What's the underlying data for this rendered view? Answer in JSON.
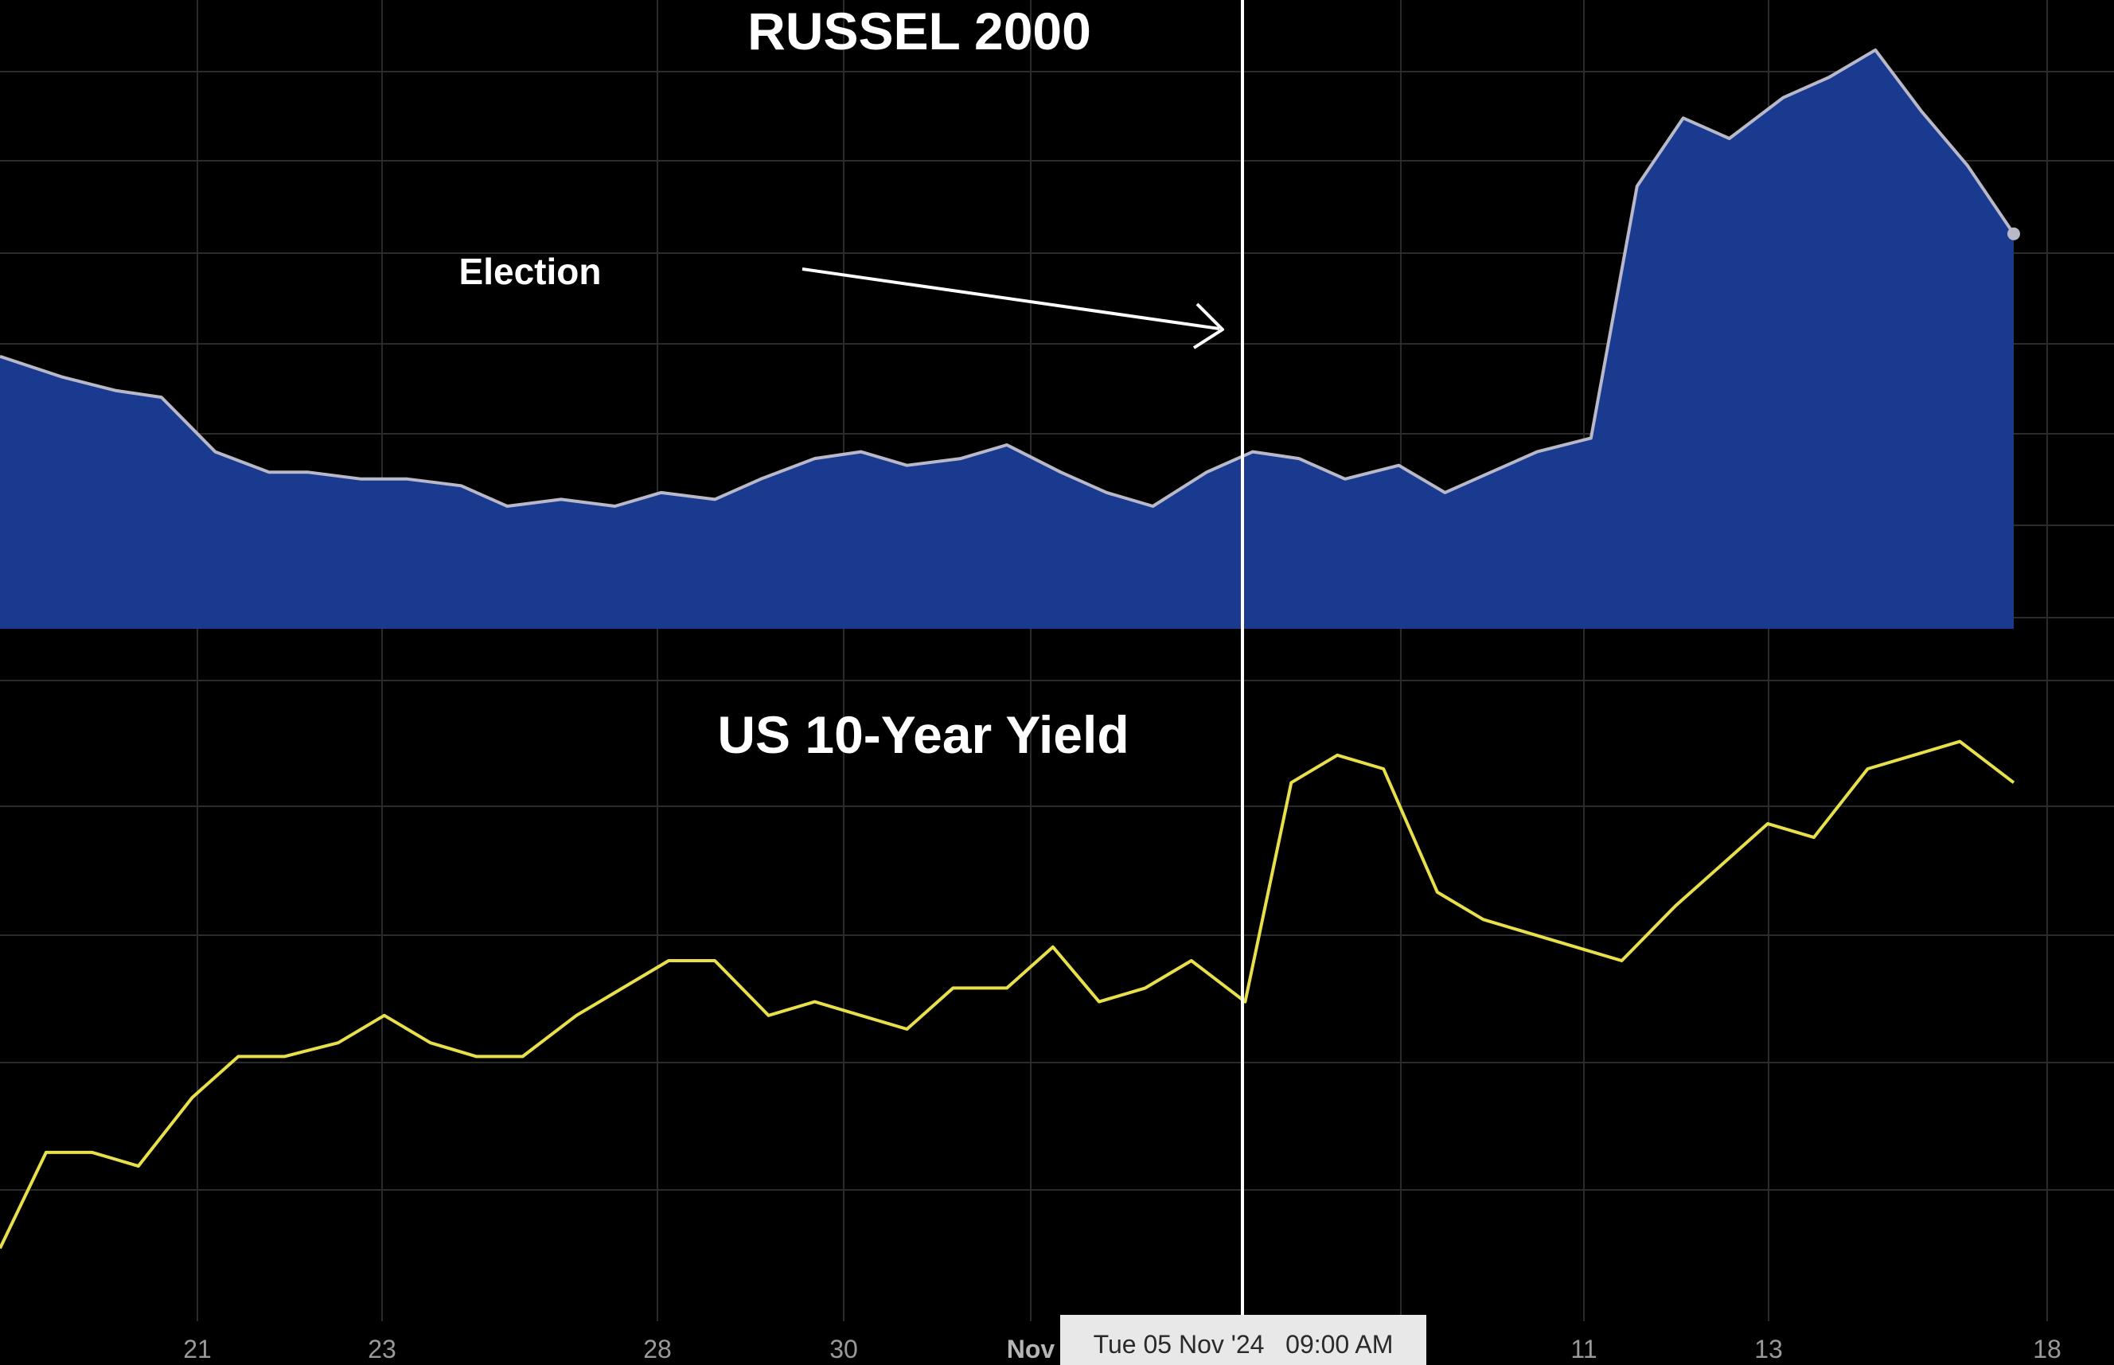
{
  "chart_data": [
    {
      "type": "area",
      "title": "RUSSEL 2000",
      "color": "#1a3a8f",
      "line_color": "#b8b8c8",
      "annotation": "Election",
      "x_ticks": [
        "21",
        "23",
        "28",
        "30",
        "Nov",
        "11",
        "13",
        "18"
      ],
      "grid": true,
      "x": [
        0,
        8,
        15,
        21,
        28,
        35,
        40,
        47,
        53,
        60,
        66,
        73,
        80,
        86,
        93,
        99,
        106,
        112,
        118,
        125,
        131,
        138,
        144,
        150,
        157,
        163,
        169,
        175,
        182,
        188,
        194,
        200,
        207,
        213,
        219,
        225,
        232,
        238,
        244,
        250,
        256,
        262
      ],
      "values": [
        100,
        97,
        95,
        94,
        86,
        83,
        83,
        82,
        82,
        81,
        78,
        79,
        78,
        80,
        79,
        82,
        85,
        86,
        84,
        85,
        87,
        83,
        80,
        78,
        83,
        86,
        85,
        82,
        84,
        80,
        83,
        86,
        88,
        125,
        135,
        132,
        138,
        141,
        145,
        136,
        128,
        118
      ],
      "ylim": [
        60,
        150
      ]
    },
    {
      "type": "line",
      "title": "US 10-Year Yield",
      "color": "#e8e04a",
      "x": [
        0,
        6,
        12,
        18,
        25,
        31,
        37,
        44,
        50,
        56,
        62,
        68,
        75,
        81,
        87,
        93,
        100,
        106,
        112,
        118,
        124,
        131,
        137,
        143,
        149,
        155,
        162,
        168,
        174,
        180,
        187,
        193,
        199,
        205,
        211,
        218,
        224,
        230,
        236,
        243,
        249,
        255,
        262
      ],
      "values": [
        4.08,
        4.15,
        4.15,
        4.14,
        4.19,
        4.22,
        4.22,
        4.23,
        4.25,
        4.23,
        4.22,
        4.22,
        4.25,
        4.27,
        4.29,
        4.29,
        4.25,
        4.26,
        4.25,
        4.24,
        4.27,
        4.27,
        4.3,
        4.26,
        4.27,
        4.29,
        4.26,
        4.42,
        4.44,
        4.43,
        4.34,
        4.32,
        4.31,
        4.3,
        4.29,
        4.33,
        4.36,
        4.39,
        4.38,
        4.43,
        4.44,
        4.45,
        4.42
      ],
      "ylim": [
        4.05,
        4.48
      ]
    }
  ],
  "crosshair": {
    "label": "Tue 05 Nov '24   09:00 AM"
  }
}
